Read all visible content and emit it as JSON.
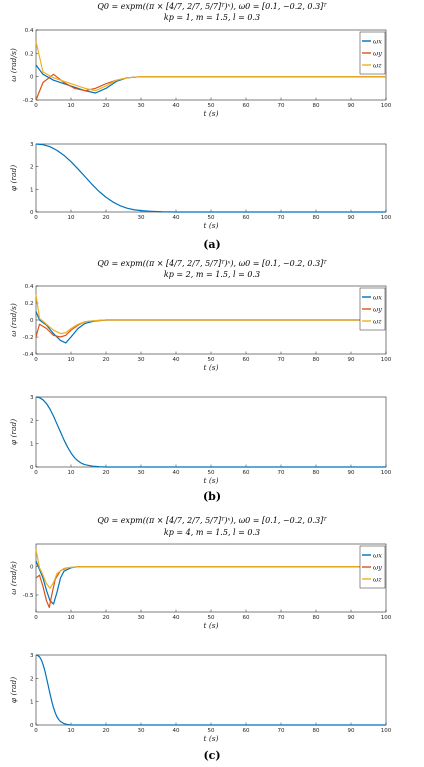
{
  "colors": {
    "wx": "#0072BD",
    "wy": "#D95319",
    "wz": "#EDB120",
    "phi": "#0072BD"
  },
  "chart_data": [
    {
      "type": "line",
      "panel_label": "(a)",
      "title_line1": "Q0 = expm((π × [4/7, 2/7, 5/7]ᵀ)ˣ), ω0 = [0.1, −0.2, 0.3]ᵀ",
      "title_line2": "kp = 1, m = 1.5, l = 0.3",
      "omega": {
        "ylabel": "ω (rad/s)",
        "xlabel": "t (s)",
        "xlim": [
          0,
          100
        ],
        "ylim": [
          -0.2,
          0.4
        ],
        "xticks": [
          0,
          10,
          20,
          30,
          40,
          50,
          60,
          70,
          80,
          90,
          100
        ],
        "yticks": [
          -0.2,
          0,
          0.2,
          0.4
        ],
        "ytick_labels": [
          "-0.2",
          "0",
          "0.2",
          "0.4"
        ],
        "legend": [
          "ωx",
          "ωy",
          "ωz"
        ],
        "series": [
          {
            "name": "ωx",
            "x": [
              0,
              2,
              5,
              8,
              11,
              14,
              17,
              20,
              23,
              26,
              30,
              35,
              45,
              100
            ],
            "y": [
              0.1,
              0.02,
              -0.03,
              -0.06,
              -0.09,
              -0.12,
              -0.14,
              -0.1,
              -0.04,
              -0.01,
              0.0,
              0.0,
              0.0,
              0.0
            ]
          },
          {
            "name": "ωy",
            "x": [
              0,
              2,
              5,
              8,
              11,
              14,
              17,
              20,
              23,
              26,
              30,
              35,
              45,
              100
            ],
            "y": [
              -0.2,
              -0.05,
              0.02,
              -0.05,
              -0.1,
              -0.12,
              -0.1,
              -0.06,
              -0.03,
              -0.01,
              0.0,
              0.0,
              0.0,
              0.0
            ]
          },
          {
            "name": "ωz",
            "x": [
              0,
              2,
              5,
              8,
              11,
              14,
              17,
              20,
              23,
              26,
              30,
              35,
              45,
              100
            ],
            "y": [
              0.3,
              0.04,
              -0.01,
              -0.04,
              -0.07,
              -0.1,
              -0.12,
              -0.08,
              -0.03,
              -0.01,
              0.0,
              0.0,
              0.0,
              0.0
            ]
          }
        ]
      },
      "phi": {
        "ylabel": "φ (rad)",
        "xlabel": "t (s)",
        "xlim": [
          0,
          100
        ],
        "ylim": [
          0,
          3
        ],
        "xticks": [
          0,
          10,
          20,
          30,
          40,
          50,
          60,
          70,
          80,
          90,
          100
        ],
        "yticks": [
          0,
          1,
          2,
          3
        ],
        "ytick_labels": [
          "0",
          "1",
          "2",
          "3"
        ],
        "series": [
          {
            "name": "φ",
            "x": [
              0,
              2,
              4,
              6,
              8,
              10,
              12,
              14,
              16,
              18,
              20,
              22,
              24,
              26,
              28,
              30,
              33,
              36,
              40,
              50,
              100
            ],
            "y": [
              3.0,
              2.97,
              2.88,
              2.72,
              2.5,
              2.22,
              1.9,
              1.56,
              1.22,
              0.91,
              0.65,
              0.44,
              0.28,
              0.17,
              0.1,
              0.06,
              0.03,
              0.01,
              0.0,
              0.0,
              0.0
            ]
          }
        ]
      }
    },
    {
      "type": "line",
      "panel_label": "(b)",
      "title_line1": "Q0 = expm((π × [4/7, 2/7, 5/7]ᵀ)ˣ), ω0 = [0.1, −0.2, 0.3]ᵀ",
      "title_line2": "kp = 2, m = 1.5, l = 0.3",
      "omega": {
        "ylabel": "ω (rad/s)",
        "xlabel": "t (s)",
        "xlim": [
          0,
          100
        ],
        "ylim": [
          -0.4,
          0.4
        ],
        "xticks": [
          0,
          10,
          20,
          30,
          40,
          50,
          60,
          70,
          80,
          90,
          100
        ],
        "yticks": [
          -0.4,
          -0.2,
          0,
          0.2,
          0.4
        ],
        "ytick_labels": [
          "-0.4",
          "-0.2",
          "0",
          "0.2",
          "0.4"
        ],
        "legend": [
          "ωx",
          "ωy",
          "ωz"
        ],
        "series": [
          {
            "name": "ωx",
            "x": [
              0,
              1,
              3,
              5,
              7,
              8.5,
              10,
              12,
              14,
              17,
              20,
              25,
              100
            ],
            "y": [
              0.1,
              0.0,
              -0.06,
              -0.16,
              -0.24,
              -0.27,
              -0.2,
              -0.1,
              -0.04,
              -0.01,
              0.0,
              0.0,
              0.0
            ]
          },
          {
            "name": "ωy",
            "x": [
              0,
              1,
              3,
              5,
              7,
              8.5,
              10,
              12,
              14,
              17,
              20,
              25,
              100
            ],
            "y": [
              -0.2,
              -0.05,
              -0.1,
              -0.18,
              -0.2,
              -0.18,
              -0.12,
              -0.06,
              -0.02,
              -0.01,
              0.0,
              0.0,
              0.0
            ]
          },
          {
            "name": "ωz",
            "x": [
              0,
              1,
              3,
              5,
              7,
              8.5,
              10,
              12,
              14,
              17,
              20,
              25,
              100
            ],
            "y": [
              0.3,
              0.02,
              -0.05,
              -0.12,
              -0.16,
              -0.15,
              -0.1,
              -0.05,
              -0.02,
              -0.005,
              0.0,
              0.0,
              0.0
            ]
          }
        ]
      },
      "phi": {
        "ylabel": "φ (rad)",
        "xlabel": "t (s)",
        "xlim": [
          0,
          100
        ],
        "ylim": [
          0,
          3
        ],
        "xticks": [
          0,
          10,
          20,
          30,
          40,
          50,
          60,
          70,
          80,
          90,
          100
        ],
        "yticks": [
          0,
          1,
          2,
          3
        ],
        "ytick_labels": [
          "0",
          "1",
          "2",
          "3"
        ],
        "series": [
          {
            "name": "φ",
            "x": [
              0,
              1,
              2,
              3,
              4,
              5,
              6,
              7,
              8,
              9,
              10,
              11,
              12,
              13,
              14,
              16,
              18,
              20,
              25,
              100
            ],
            "y": [
              3.0,
              2.97,
              2.88,
              2.72,
              2.48,
              2.18,
              1.84,
              1.5,
              1.16,
              0.86,
              0.6,
              0.4,
              0.26,
              0.16,
              0.1,
              0.04,
              0.01,
              0.0,
              0.0,
              0.0
            ]
          }
        ]
      }
    },
    {
      "type": "line",
      "panel_label": "(c)",
      "title_line1": "Q0 = expm((π × [4/7, 2/7, 5/7]ᵀ)ˣ), ω0 = [0.1, −0.2, 0.3]ᵀ",
      "title_line2": "kp = 4, m = 1.5, l = 0.3",
      "omega": {
        "ylabel": "ω (rad/s)",
        "xlabel": "t (s)",
        "xlim": [
          0,
          100
        ],
        "ylim": [
          -0.8,
          0.4
        ],
        "xticks": [
          0,
          10,
          20,
          30,
          40,
          50,
          60,
          70,
          80,
          90,
          100
        ],
        "yticks": [
          -0.5,
          0
        ],
        "ytick_labels": [
          "-0.5",
          "0"
        ],
        "legend": [
          "ωx",
          "ωy",
          "ωz"
        ],
        "series": [
          {
            "name": "ωx",
            "x": [
              0,
              1,
              2,
              3,
              4,
              5,
              6,
              7,
              8,
              10,
              12,
              15,
              100
            ],
            "y": [
              0.1,
              -0.05,
              -0.2,
              -0.42,
              -0.6,
              -0.66,
              -0.45,
              -0.2,
              -0.08,
              -0.02,
              0.0,
              0.0,
              0.0
            ]
          },
          {
            "name": "ωy",
            "x": [
              0,
              1,
              2,
              3,
              3.8,
              4.5,
              5.5,
              7,
              9,
              12,
              15,
              100
            ],
            "y": [
              -0.2,
              -0.15,
              -0.35,
              -0.6,
              -0.72,
              -0.5,
              -0.22,
              -0.07,
              -0.02,
              0.0,
              0.0,
              0.0
            ]
          },
          {
            "name": "ωz",
            "x": [
              0,
              1,
              2,
              3,
              4,
              5,
              6,
              8,
              10,
              13,
              100
            ],
            "y": [
              0.3,
              -0.02,
              -0.15,
              -0.3,
              -0.38,
              -0.28,
              -0.12,
              -0.03,
              -0.01,
              0.0,
              0.0
            ]
          }
        ]
      },
      "phi": {
        "ylabel": "φ (rad)",
        "xlabel": "t (s)",
        "xlim": [
          0,
          100
        ],
        "ylim": [
          0,
          3
        ],
        "xticks": [
          0,
          10,
          20,
          30,
          40,
          50,
          60,
          70,
          80,
          90,
          100
        ],
        "yticks": [
          0,
          1,
          2,
          3
        ],
        "ytick_labels": [
          "0",
          "1",
          "2",
          "3"
        ],
        "series": [
          {
            "name": "φ",
            "x": [
              0,
              0.5,
              1,
              1.5,
              2,
              2.5,
              3,
              3.5,
              4,
              4.5,
              5,
              5.5,
              6,
              6.5,
              7,
              8,
              9,
              10,
              12,
              100
            ],
            "y": [
              3.0,
              2.98,
              2.92,
              2.8,
              2.6,
              2.34,
              2.02,
              1.68,
              1.34,
              1.02,
              0.74,
              0.52,
              0.35,
              0.23,
              0.15,
              0.06,
              0.02,
              0.0,
              0.0,
              0.0
            ]
          }
        ]
      }
    }
  ]
}
